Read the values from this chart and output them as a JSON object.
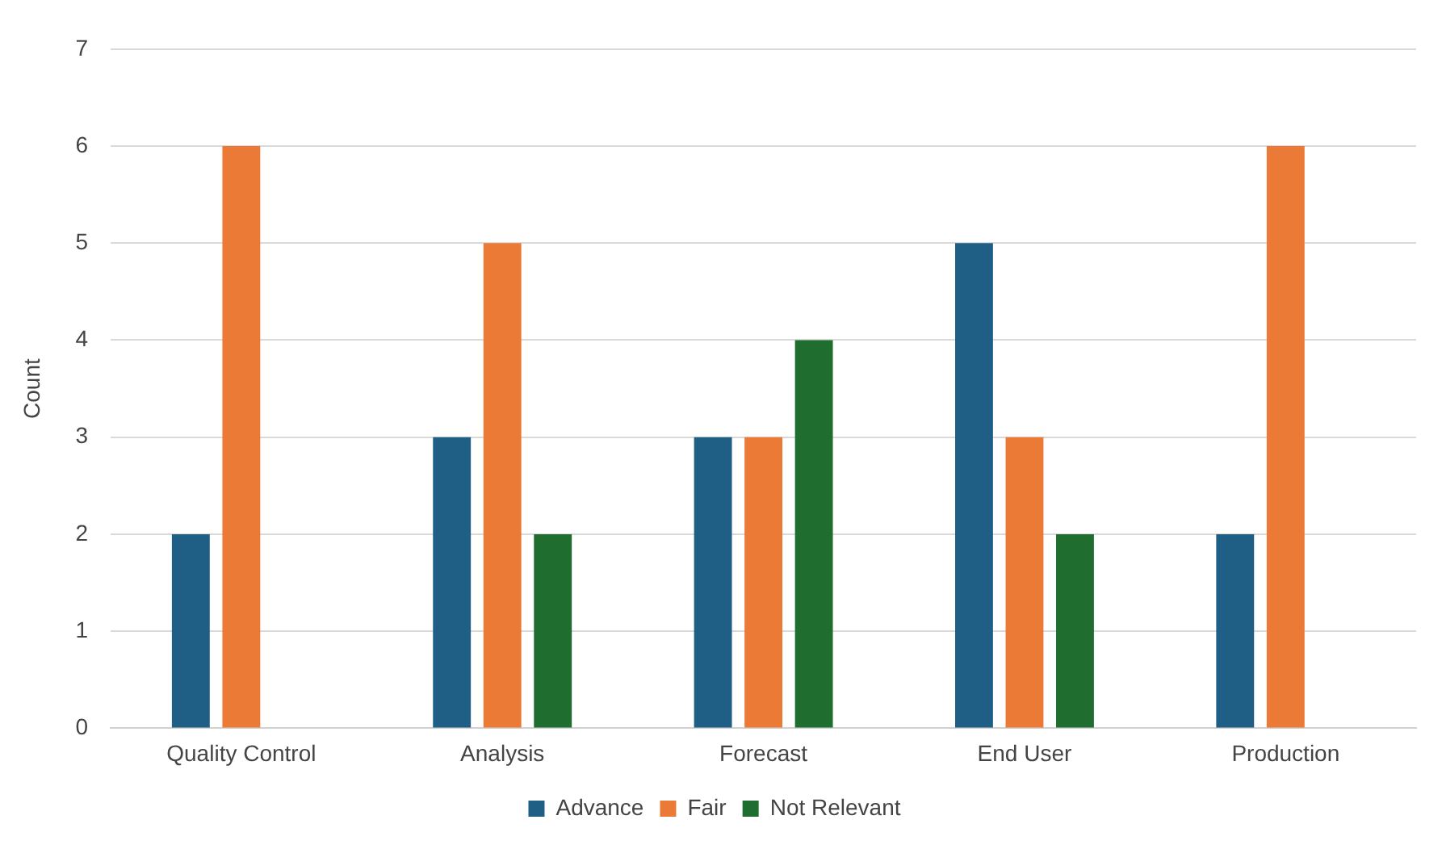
{
  "chart_data": {
    "type": "bar",
    "ylabel": "Count",
    "categories": [
      "Quality Control",
      "Analysis",
      "Forecast",
      "End User",
      "Production"
    ],
    "series": [
      {
        "name": "Advance",
        "color": "#1f5f86",
        "values": [
          2,
          3,
          3,
          5,
          2
        ]
      },
      {
        "name": "Fair",
        "color": "#ec7a37",
        "values": [
          6,
          5,
          3,
          3,
          6
        ]
      },
      {
        "name": "Not Relevant",
        "color": "#1f6e2f",
        "values": [
          0,
          2,
          4,
          2,
          0
        ]
      }
    ],
    "ylim": [
      0,
      7
    ],
    "yticks": [
      0,
      1,
      2,
      3,
      4,
      5,
      6,
      7
    ],
    "grid": "y",
    "legend": "bottom"
  }
}
